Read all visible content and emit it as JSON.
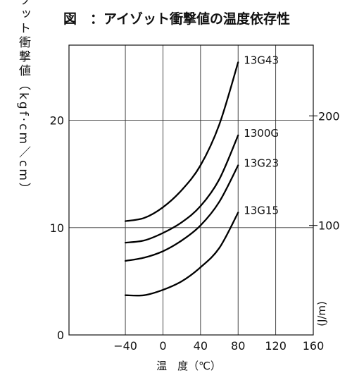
{
  "title": "図　：アイゾット衝撃値の温度依存性",
  "chart_data": {
    "type": "line",
    "title": "図　：アイゾット衝撃値の温度依存性",
    "xlabel": "温　度（℃）",
    "ylabel": "アイゾット衝撃値（kgf·cm／cm）",
    "y2label": "(J/m)",
    "xlim": [
      -100,
      160
    ],
    "ylim": [
      0,
      27
    ],
    "y2lim": [
      0,
      264.6
    ],
    "x_ticks": [
      -40,
      0,
      40,
      80,
      120,
      160
    ],
    "x_tick_labels": [
      "−40",
      "0",
      "40",
      "80",
      "120",
      "160"
    ],
    "y_ticks": [
      0,
      10,
      20
    ],
    "y_tick_labels": [
      "0",
      "10",
      "20"
    ],
    "y2_ticks": [
      100,
      200
    ],
    "y2_tick_labels": [
      "100",
      "200"
    ],
    "grid": true,
    "series": [
      {
        "name": "13G43",
        "x": [
          -40,
          -20,
          0,
          20,
          40,
          60,
          80
        ],
        "y": [
          10.6,
          10.9,
          11.9,
          13.5,
          15.8,
          19.6,
          25.4
        ]
      },
      {
        "name": "1300G",
        "x": [
          -40,
          -20,
          0,
          20,
          40,
          60,
          80
        ],
        "y": [
          8.6,
          8.8,
          9.5,
          10.5,
          12.0,
          14.5,
          18.6
        ]
      },
      {
        "name": "13G23",
        "x": [
          -40,
          -20,
          0,
          20,
          40,
          60,
          80
        ],
        "y": [
          6.9,
          7.2,
          7.8,
          8.8,
          10.2,
          12.4,
          15.8
        ]
      },
      {
        "name": "13G15",
        "x": [
          -40,
          -20,
          0,
          20,
          40,
          60,
          80
        ],
        "y": [
          3.7,
          3.7,
          4.2,
          5.0,
          6.3,
          8.1,
          11.4
        ]
      }
    ]
  }
}
